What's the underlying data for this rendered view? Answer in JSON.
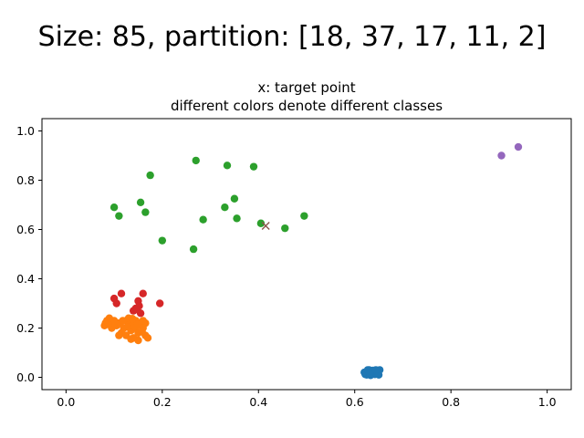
{
  "figure": {
    "suptitle": "Size: 85, partition: [18, 37, 17, 11, 2]"
  },
  "chart_data": {
    "type": "scatter",
    "title_line1": "x: target point",
    "title_line2": "different colors denote different classes",
    "xlabel": "",
    "ylabel": "",
    "xlim": [
      -0.05,
      1.05
    ],
    "ylim": [
      -0.05,
      1.05
    ],
    "xticks": [
      "0.0",
      "0.2",
      "0.4",
      "0.6",
      "0.8",
      "1.0"
    ],
    "yticks": [
      "0.0",
      "0.2",
      "0.4",
      "0.6",
      "0.8",
      "1.0"
    ],
    "grid": false,
    "series": [
      {
        "color": "#1f77b4",
        "points": [
          [
            0.62,
            0.02
          ],
          [
            0.625,
            0.01
          ],
          [
            0.63,
            0.03
          ],
          [
            0.635,
            0.015
          ],
          [
            0.64,
            0.02
          ],
          [
            0.645,
            0.025
          ],
          [
            0.65,
            0.01
          ],
          [
            0.652,
            0.03
          ],
          [
            0.628,
            0.025
          ],
          [
            0.633,
            0.008
          ],
          [
            0.638,
            0.028
          ],
          [
            0.642,
            0.012
          ],
          [
            0.622,
            0.012
          ],
          [
            0.627,
            0.03
          ],
          [
            0.636,
            0.022
          ],
          [
            0.648,
            0.018
          ],
          [
            0.631,
            0.017
          ],
          [
            0.644,
            0.03
          ]
        ]
      },
      {
        "color": "#ff7f0e",
        "points": [
          [
            0.08,
            0.21
          ],
          [
            0.085,
            0.23
          ],
          [
            0.09,
            0.22
          ],
          [
            0.095,
            0.2
          ],
          [
            0.1,
            0.23
          ],
          [
            0.105,
            0.21
          ],
          [
            0.11,
            0.22
          ],
          [
            0.115,
            0.18
          ],
          [
            0.12,
            0.2
          ],
          [
            0.125,
            0.23
          ],
          [
            0.13,
            0.22
          ],
          [
            0.135,
            0.19
          ],
          [
            0.14,
            0.16
          ],
          [
            0.145,
            0.2
          ],
          [
            0.15,
            0.18
          ],
          [
            0.155,
            0.22
          ],
          [
            0.16,
            0.2
          ],
          [
            0.165,
            0.17
          ],
          [
            0.17,
            0.16
          ],
          [
            0.165,
            0.22
          ],
          [
            0.145,
            0.23
          ],
          [
            0.13,
            0.24
          ],
          [
            0.125,
            0.17
          ],
          [
            0.11,
            0.17
          ],
          [
            0.1,
            0.22
          ],
          [
            0.09,
            0.24
          ],
          [
            0.082,
            0.22
          ],
          [
            0.14,
            0.21
          ],
          [
            0.15,
            0.15
          ],
          [
            0.135,
            0.155
          ],
          [
            0.118,
            0.23
          ],
          [
            0.128,
            0.205
          ],
          [
            0.158,
            0.185
          ],
          [
            0.148,
            0.215
          ],
          [
            0.088,
            0.215
          ],
          [
            0.16,
            0.23
          ],
          [
            0.138,
            0.238
          ]
        ]
      },
      {
        "color": "#2ca02c",
        "points": [
          [
            0.175,
            0.82
          ],
          [
            0.27,
            0.88
          ],
          [
            0.335,
            0.86
          ],
          [
            0.39,
            0.855
          ],
          [
            0.1,
            0.69
          ],
          [
            0.11,
            0.655
          ],
          [
            0.155,
            0.71
          ],
          [
            0.165,
            0.67
          ],
          [
            0.2,
            0.555
          ],
          [
            0.265,
            0.52
          ],
          [
            0.285,
            0.64
          ],
          [
            0.33,
            0.69
          ],
          [
            0.35,
            0.725
          ],
          [
            0.355,
            0.645
          ],
          [
            0.405,
            0.625
          ],
          [
            0.455,
            0.605
          ],
          [
            0.495,
            0.655
          ]
        ]
      },
      {
        "color": "#d62728",
        "points": [
          [
            0.1,
            0.32
          ],
          [
            0.105,
            0.3
          ],
          [
            0.115,
            0.34
          ],
          [
            0.14,
            0.27
          ],
          [
            0.145,
            0.28
          ],
          [
            0.15,
            0.31
          ],
          [
            0.152,
            0.29
          ],
          [
            0.155,
            0.26
          ],
          [
            0.16,
            0.34
          ],
          [
            0.195,
            0.3
          ],
          [
            0.148,
            0.275
          ]
        ]
      },
      {
        "color": "#9467bd",
        "points": [
          [
            0.905,
            0.9
          ],
          [
            0.94,
            0.935
          ]
        ]
      }
    ],
    "target": {
      "x": 0.415,
      "y": 0.615,
      "color": "#8c564b"
    }
  }
}
